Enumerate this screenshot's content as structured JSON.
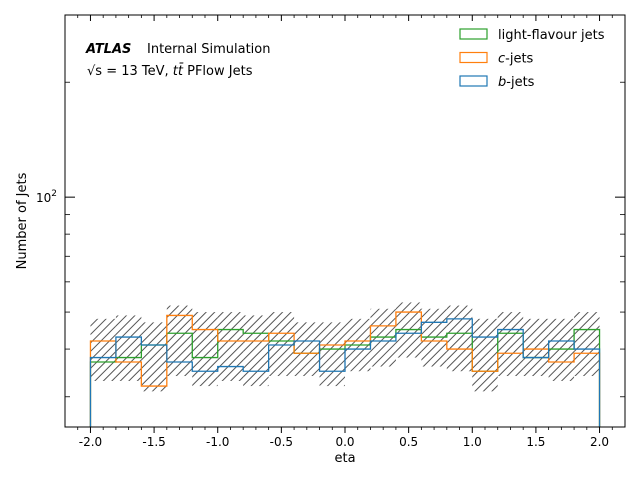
{
  "chart_data": {
    "type": "step",
    "title": "",
    "atlas_label": "ATLAS",
    "atlas_suffix": "Internal Simulation",
    "energy_prefix": "√s = 13 TeV, ",
    "energy_ttbar": "tt̄",
    "energy_suffix": " PFlow Jets",
    "xlabel": "eta",
    "ylabel": "Number of Jets",
    "xlim": [
      -2.2,
      2.2
    ],
    "ylim": [
      25,
      300
    ],
    "yscale": "log",
    "xticks": [
      -2.0,
      -1.5,
      -1.0,
      -0.5,
      0.0,
      0.5,
      1.0,
      1.5,
      2.0
    ],
    "xticklabels": [
      "-2.0",
      "-1.5",
      "-1.0",
      "-0.5",
      "0.0",
      "0.5",
      "1.0",
      "1.5",
      "2.0"
    ],
    "ymajor_tick": 100,
    "ymajor_label_base": "10",
    "ymajor_label_exp": "2",
    "legend_position": "top-right",
    "grid": false,
    "bin_edges": [
      -2.0,
      -1.8,
      -1.6,
      -1.4,
      -1.2,
      -1.0,
      -0.8,
      -0.6,
      -0.4,
      -0.2,
      0.0,
      0.2,
      0.4,
      0.6,
      0.8,
      1.0,
      1.2,
      1.4,
      1.6,
      1.8,
      2.0
    ],
    "series": [
      {
        "name": "light-flavour jets",
        "color": "#2ca02c",
        "values": [
          37,
          38,
          41,
          44,
          38,
          45,
          44,
          42,
          39,
          40,
          41,
          43,
          45,
          43,
          44,
          35,
          44,
          38,
          40,
          45
        ]
      },
      {
        "name": "c-jets",
        "color": "#ff7f0e",
        "values": [
          42,
          37,
          32,
          49,
          45,
          42,
          42,
          44,
          39,
          41,
          42,
          46,
          50,
          42,
          40,
          35,
          39,
          40,
          37,
          39
        ]
      },
      {
        "name": "b-jets",
        "color": "#1f77b4",
        "values": [
          38,
          43,
          41,
          37,
          35,
          36,
          35,
          41,
          42,
          35,
          40,
          42,
          44,
          47,
          48,
          43,
          45,
          38,
          42,
          40
        ]
      }
    ],
    "uncertainty": {
      "low": [
        33,
        33,
        31,
        34,
        32,
        33,
        32,
        34,
        34,
        32,
        35,
        36,
        38,
        36,
        35,
        31,
        34,
        34,
        33,
        34
      ],
      "high": [
        48,
        49,
        47,
        52,
        50,
        50,
        49,
        50,
        47,
        47,
        48,
        51,
        53,
        51,
        52,
        48,
        50,
        48,
        48,
        50
      ]
    }
  }
}
